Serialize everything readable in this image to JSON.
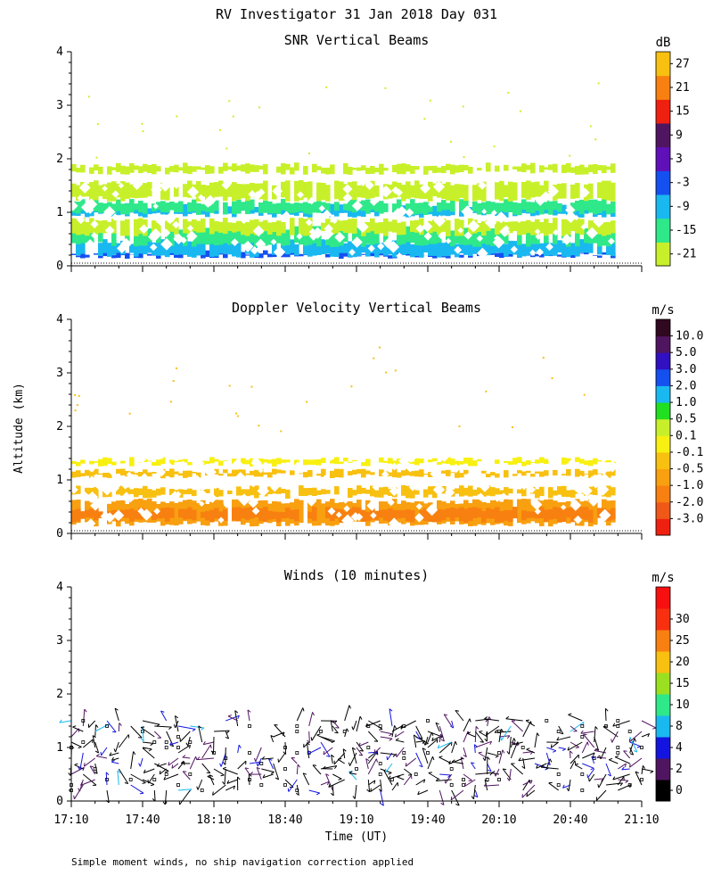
{
  "figure": {
    "title": "RV Investigator  31 Jan 2018 Day 031",
    "ylabel": "Altitude (km)",
    "xlabel": "Time (UT)",
    "footnote": "Simple moment winds, no ship navigation correction applied"
  },
  "chart_data": [
    {
      "type": "heatmap",
      "title": "SNR Vertical Beams",
      "units": "dB",
      "ylim": [
        0,
        4
      ],
      "yticks": [
        "0",
        "1",
        "2",
        "3",
        "4"
      ],
      "x_tick_labels": [
        "17:10",
        "17:40",
        "18:10",
        "18:40",
        "19:10",
        "19:40",
        "20:10",
        "20:40",
        "21:10"
      ],
      "data_time_range": [
        "17:10",
        "20:58"
      ],
      "colorbar": {
        "labels": [
          "-21",
          "-15",
          "-9",
          "-3",
          "3",
          "9",
          "15",
          "21",
          "27"
        ],
        "colors": [
          "#c8f02a",
          "#2ee88a",
          "#1ab8f0",
          "#1450f0",
          "#6010b8",
          "#501560",
          "#f02010",
          "#f88010",
          "#f8c010"
        ]
      },
      "layers": [
        {
          "from_km": 0.18,
          "to_km": 0.24,
          "color": "#1450f0"
        },
        {
          "from_km": 0.2,
          "to_km": 0.45,
          "color": "#1ab8f0"
        },
        {
          "from_km": 0.4,
          "to_km": 0.7,
          "color": "#2ee88a"
        },
        {
          "from_km": 0.6,
          "to_km": 0.85,
          "color": "#c8f02a"
        },
        {
          "from_km": 0.95,
          "to_km": 1.12,
          "color": "#1ab8f0"
        },
        {
          "from_km": 1.0,
          "to_km": 1.2,
          "color": "#2ee88a"
        },
        {
          "from_km": 1.25,
          "to_km": 1.55,
          "color": "#c8f02a"
        },
        {
          "from_km": 1.75,
          "to_km": 1.88,
          "color": "#c8f02a"
        }
      ]
    },
    {
      "type": "heatmap",
      "title": "Doppler Velocity Vertical Beams",
      "units": "m/s",
      "ylim": [
        0,
        4
      ],
      "yticks": [
        "0",
        "1",
        "2",
        "3",
        "4"
      ],
      "x_tick_labels": [
        "17:10",
        "17:40",
        "18:10",
        "18:40",
        "19:10",
        "19:40",
        "20:10",
        "20:40",
        "21:10"
      ],
      "data_time_range": [
        "17:10",
        "20:58"
      ],
      "colorbar": {
        "labels": [
          "-3.0",
          "-2.0",
          "-1.0",
          "-0.5",
          "-0.1",
          "0.1",
          "0.5",
          "1.0",
          "2.0",
          "3.0",
          "5.0",
          "10.0"
        ],
        "colors": [
          "#f02010",
          "#f05818",
          "#f88010",
          "#f8a010",
          "#f8c010",
          "#f8f010",
          "#c8f02a",
          "#20e020",
          "#1ab8f0",
          "#1450f0",
          "#3010c0",
          "#501560",
          "#300820"
        ]
      },
      "layers": [
        {
          "from_km": 0.18,
          "to_km": 0.6,
          "color": "#f8a010"
        },
        {
          "from_km": 0.25,
          "to_km": 0.45,
          "color": "#f88010"
        },
        {
          "from_km": 0.7,
          "to_km": 0.85,
          "color": "#f8c010"
        },
        {
          "from_km": 1.08,
          "to_km": 1.16,
          "color": "#f8c010"
        },
        {
          "from_km": 1.3,
          "to_km": 1.38,
          "color": "#f8f010"
        }
      ]
    },
    {
      "type": "wind-barbs",
      "title": "Winds (10 minutes)",
      "units": "m/s",
      "ylim": [
        0,
        4
      ],
      "yticks": [
        "0",
        "1",
        "2",
        "3",
        "4"
      ],
      "x_tick_labels": [
        "17:10",
        "17:40",
        "18:10",
        "18:40",
        "19:10",
        "19:40",
        "20:10",
        "20:40",
        "21:10"
      ],
      "data_time_range": [
        "17:10",
        "21:10"
      ],
      "profile_interval_minutes": 10,
      "max_altitude_km": 1.6,
      "colorbar": {
        "labels": [
          "0",
          "2",
          "4",
          "8",
          "10",
          "15",
          "20",
          "25",
          "30"
        ],
        "colors": [
          "#000000",
          "#501560",
          "#1414e0",
          "#1ab8f0",
          "#2ee88a",
          "#9ae020",
          "#f8c010",
          "#f88010",
          "#f83010",
          "#f81010"
        ]
      }
    }
  ]
}
